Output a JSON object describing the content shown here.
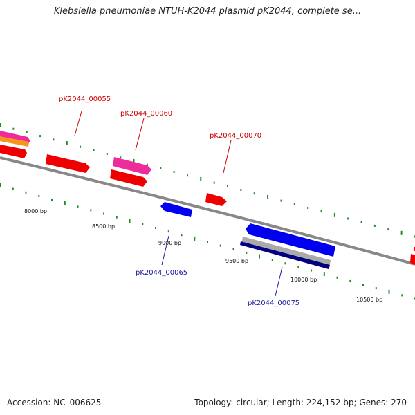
{
  "map": {
    "title": "Klebsiella pneumoniae NTUH-K2044 plasmid pK2044, complete se...",
    "accession": "Accession: NC_006625",
    "stats": "Topology: circular; Length: 224,152 bp; Genes: 270"
  },
  "ruler": {
    "labels": [
      "8000 bp",
      "8500 bp",
      "9000 bp",
      "9500 bp",
      "10000 bp",
      "10500 bp"
    ]
  },
  "genes": {
    "forward_labels": [
      "pK2044_00055",
      "pK2044_00060",
      "pK2044_00070"
    ],
    "reverse_labels": [
      "pK2044_00065",
      "pK2044_00075"
    ]
  },
  "colors": {
    "forward": "#ee0000",
    "reverse": "#0000ee",
    "magenta": "#ee2b9a",
    "orange": "#f7941d",
    "grey": "#aaaaaa",
    "navy": "#000080",
    "backbone": "#888888",
    "tick": "#228b22"
  }
}
